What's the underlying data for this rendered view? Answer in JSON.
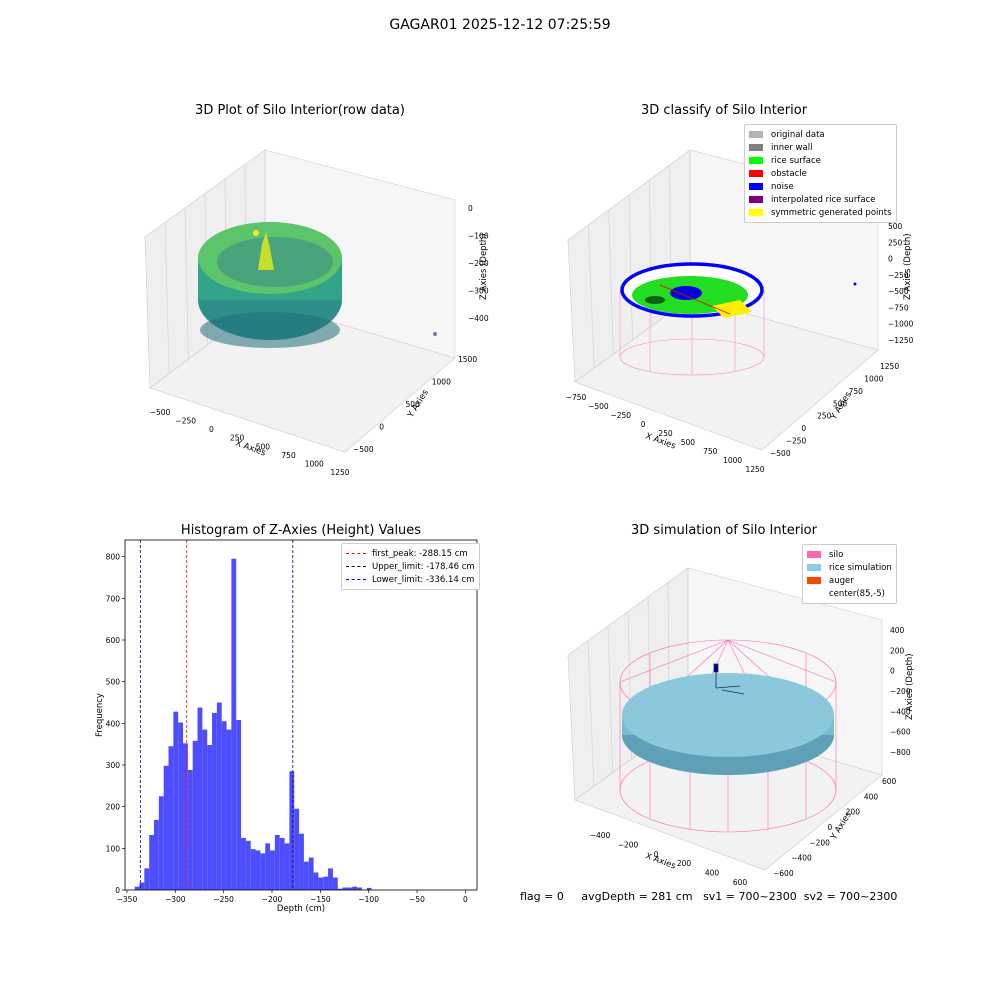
{
  "suptitle": "GAGAR01 2025-12-12 07:25:59",
  "status": {
    "flag": "flag = 0",
    "avg_depth": "avgDepth = 281 cm",
    "sv1": "sv1 = 700~2300",
    "sv2": "sv2 = 700~2300"
  },
  "chart_data": [
    {
      "type": "scatter",
      "title": "3D Plot of Silo Interior(row data)",
      "xlabel": "X Axies",
      "ylabel": "Y Axies",
      "zlabel": "Z Axies (Depth)",
      "x_ticks": [
        "−500",
        "−250",
        "0",
        "250",
        "500",
        "750",
        "1000",
        "1250"
      ],
      "y_ticks": [
        "−500",
        "0",
        "500",
        "1000",
        "1500"
      ],
      "z_ticks": [
        "0",
        "−100",
        "−200",
        "−300",
        "−400"
      ],
      "colormap": "viridis"
    },
    {
      "type": "scatter",
      "title": "3D classify of Silo Interior",
      "xlabel": "X Axies",
      "ylabel": "Y Axies",
      "zlabel": "Z Axies (Depth)",
      "x_ticks": [
        "−750",
        "−500",
        "−250",
        "0",
        "250",
        "500",
        "750",
        "1000",
        "1250"
      ],
      "y_ticks": [
        "−500",
        "−250",
        "0",
        "250",
        "500",
        "750",
        "1000",
        "1250"
      ],
      "z_ticks": [
        "500",
        "250",
        "0",
        "−250",
        "−500",
        "−750",
        "−1000",
        "−1250"
      ],
      "legend": [
        {
          "label": "original data",
          "color": "#b3b3b3"
        },
        {
          "label": "inner wall",
          "color": "#808080"
        },
        {
          "label": "rice surface",
          "color": "#00ff00"
        },
        {
          "label": "obstacle",
          "color": "#ff0000"
        },
        {
          "label": "noise",
          "color": "#0000ff"
        },
        {
          "label": "interpolated rice surface",
          "color": "#800080"
        },
        {
          "label": "symmetric generated points",
          "color": "#ffff00"
        }
      ]
    },
    {
      "type": "bar",
      "title": "Histogram of Z-Axies (Height) Values",
      "xlabel": "Depth (cm)",
      "ylabel": "Frequency",
      "xlim": [
        -352,
        12
      ],
      "ylim": [
        0,
        840
      ],
      "bin_start": -342,
      "bin_width": 5,
      "x_ticks": [
        -350,
        -300,
        -250,
        -200,
        -150,
        -100,
        -50,
        0
      ],
      "y_ticks": [
        0,
        100,
        200,
        300,
        400,
        500,
        600,
        700,
        800
      ],
      "values": [
        8,
        18,
        52,
        132,
        168,
        225,
        298,
        345,
        428,
        402,
        352,
        288,
        358,
        438,
        385,
        348,
        425,
        450,
        405,
        385,
        795,
        408,
        125,
        118,
        98,
        95,
        88,
        112,
        95,
        132,
        125,
        112,
        285,
        195,
        135,
        68,
        78,
        42,
        30,
        32,
        52,
        30,
        3,
        6,
        6,
        8,
        6,
        0,
        5
      ],
      "bar_color": "#4d4dff",
      "lines": [
        {
          "label": "first_peak: -288.15 cm",
          "value": -288.15,
          "color": "#ff0000"
        },
        {
          "label": "Upper_limit: -178.46 cm",
          "value": -178.46,
          "color": "#00008b"
        },
        {
          "label": "Lower_limit: -336.14 cm",
          "value": -336.14,
          "color": "#0000cd"
        }
      ],
      "legend_position": "top-right"
    },
    {
      "type": "scatter",
      "title": "3D simulation of Silo Interior",
      "xlabel": "X Axies",
      "ylabel": "Y Axies",
      "zlabel": "Z Axies (Depth)",
      "x_ticks": [
        "−400",
        "−200",
        "0",
        "200",
        "400",
        "600"
      ],
      "y_ticks": [
        "−600",
        "−400",
        "−200",
        "0",
        "200",
        "400",
        "600"
      ],
      "z_ticks": [
        "400",
        "200",
        "0",
        "−200",
        "−400",
        "−600",
        "−800"
      ],
      "legend": [
        {
          "label": "silo",
          "color": "#ff69b4"
        },
        {
          "label": "rice simulation",
          "color": "#87ceeb"
        },
        {
          "label": "auger",
          "color": "#ff4500"
        },
        {
          "label": "center(85,-5)",
          "color": "#ffffff"
        }
      ]
    }
  ]
}
